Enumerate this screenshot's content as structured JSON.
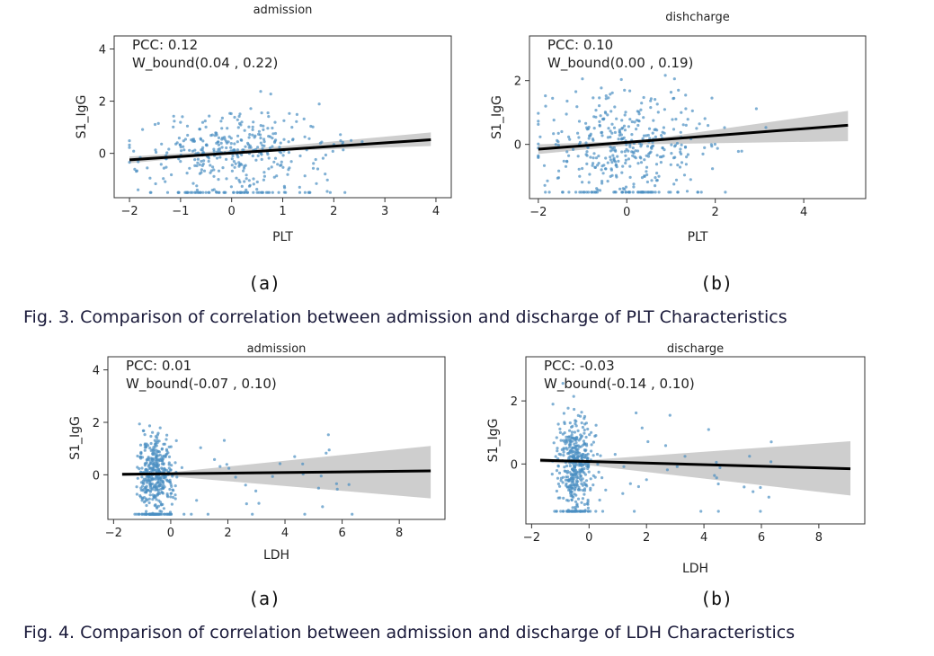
{
  "figures": [
    {
      "caption": "Fig. 3. Comparison of correlation between admission and discharge of PLT Characteristics",
      "panel_labels": [
        "(a)",
        "(b)"
      ]
    },
    {
      "caption": "Fig. 4. Comparison of correlation between admission and discharge of LDH Characteristics",
      "panel_labels": [
        "(a)",
        "(b)"
      ]
    }
  ],
  "colors": {
    "points": "#4a8fc2",
    "fit": "#000000",
    "band": "#bdbdbd",
    "text": "#1a1a3a"
  },
  "chart_data": [
    {
      "type": "scatter",
      "title": "admission",
      "xlabel": "PLT",
      "ylabel": "S1_IgG",
      "xlim": [
        -2.3,
        4.3
      ],
      "ylim": [
        -1.7,
        4.5
      ],
      "xticks": [
        -2,
        -1,
        0,
        1,
        2,
        3,
        4
      ],
      "yticks": [
        0,
        2,
        4
      ],
      "annotations": [
        "PCC: 0.12",
        "W_bound(0.04  , 0.22)"
      ],
      "fit_line": {
        "x": [
          -2,
          3.9
        ],
        "y": [
          -0.25,
          0.52
        ]
      },
      "confidence_band": {
        "x": [
          -2,
          0.3,
          3.9
        ],
        "lower": [
          -0.38,
          0.05,
          0.28
        ],
        "upper": [
          -0.12,
          0.15,
          0.8
        ]
      },
      "cloud": {
        "n": 420,
        "x_center": 0.0,
        "x_spread": 0.9,
        "y_center": 0.0,
        "y_spread": 0.8,
        "x_min": -2,
        "x_max": 3.9,
        "y_floor": -1.5
      }
    },
    {
      "type": "scatter",
      "title": "dishcharge",
      "xlabel": "PLT",
      "ylabel": "S1_IgG",
      "xlim": [
        -2.2,
        5.4
      ],
      "ylim": [
        -1.7,
        3.4
      ],
      "xticks": [
        -2,
        0,
        2,
        4
      ],
      "yticks": [
        0,
        2
      ],
      "annotations": [
        "PCC: 0.10",
        "W_bound(0.00  , 0.19)"
      ],
      "fit_line": {
        "x": [
          -2,
          5
        ],
        "y": [
          -0.15,
          0.6
        ]
      },
      "confidence_band": {
        "x": [
          -2,
          0.3,
          5
        ],
        "lower": [
          -0.3,
          0.0,
          0.1
        ],
        "upper": [
          0.0,
          0.12,
          1.05
        ]
      },
      "cloud": {
        "n": 420,
        "x_center": 0.0,
        "x_spread": 0.85,
        "y_center": 0.0,
        "y_spread": 0.8,
        "x_min": -2,
        "x_max": 5,
        "y_floor": -1.5
      }
    },
    {
      "type": "scatter",
      "title": "admission",
      "xlabel": "LDH",
      "ylabel": "S1_IgG",
      "xlim": [
        -2.2,
        9.6
      ],
      "ylim": [
        -1.7,
        4.5
      ],
      "xticks": [
        -2,
        0,
        2,
        4,
        6,
        8
      ],
      "yticks": [
        0,
        2,
        4
      ],
      "annotations": [
        "PCC: 0.01",
        "W_bound(-0.07  , 0.10)"
      ],
      "fit_line": {
        "x": [
          -1.7,
          9.1
        ],
        "y": [
          0.02,
          0.15
        ]
      },
      "confidence_band": {
        "x": [
          -1.7,
          -0.4,
          9.1
        ],
        "lower": [
          -0.05,
          -0.02,
          -0.9
        ],
        "upper": [
          0.08,
          0.05,
          1.1
        ]
      },
      "cloud": {
        "n": 480,
        "x_center": -0.55,
        "x_spread": 0.3,
        "y_center": 0.0,
        "y_spread": 0.8,
        "x_min": -1.7,
        "x_max": 9.1,
        "y_floor": -1.5
      }
    },
    {
      "type": "scatter",
      "title": "discharge",
      "xlabel": "LDH",
      "ylabel": "S1_IgG",
      "xlim": [
        -2.2,
        9.6
      ],
      "ylim": [
        -1.9,
        3.4
      ],
      "xticks": [
        -2,
        0,
        2,
        4,
        6,
        8
      ],
      "yticks": [
        0,
        2
      ],
      "annotations": [
        "PCC: -0.03",
        "W_bound(-0.14  , 0.10)"
      ],
      "fit_line": {
        "x": [
          -1.7,
          9.1
        ],
        "y": [
          0.12,
          -0.15
        ]
      },
      "confidence_band": {
        "x": [
          -1.7,
          -0.4,
          9.1
        ],
        "lower": [
          0.05,
          0.0,
          -1.0
        ],
        "upper": [
          0.18,
          0.1,
          0.72
        ]
      },
      "cloud": {
        "n": 480,
        "x_center": -0.5,
        "x_spread": 0.3,
        "y_center": 0.0,
        "y_spread": 0.8,
        "x_min": -1.7,
        "x_max": 9.1,
        "y_floor": -1.5
      }
    }
  ]
}
